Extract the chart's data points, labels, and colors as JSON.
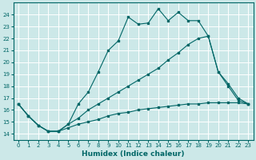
{
  "xlabel": "Humidex (Indice chaleur)",
  "bg_color": "#cce8e8",
  "grid_color": "#ffffff",
  "line_color": "#006666",
  "xlim": [
    -0.5,
    23.5
  ],
  "ylim": [
    13.5,
    25.0
  ],
  "xticks": [
    0,
    1,
    2,
    3,
    4,
    5,
    6,
    7,
    8,
    9,
    10,
    11,
    12,
    13,
    14,
    15,
    16,
    17,
    18,
    19,
    20,
    21,
    22,
    23
  ],
  "yticks": [
    14,
    15,
    16,
    17,
    18,
    19,
    20,
    21,
    22,
    23,
    24
  ],
  "line1_x": [
    0,
    1,
    2,
    3,
    4,
    5,
    6,
    7,
    8,
    9,
    10,
    11,
    12,
    13,
    14,
    15,
    16,
    17,
    18,
    19,
    20,
    21,
    22,
    23
  ],
  "line1_y": [
    16.5,
    15.5,
    14.7,
    14.2,
    14.2,
    14.8,
    16.5,
    17.5,
    19.2,
    21.0,
    21.8,
    23.8,
    23.2,
    23.3,
    24.5,
    23.5,
    24.2,
    23.5,
    23.5,
    22.2,
    19.2,
    18.0,
    16.8,
    16.5
  ],
  "line2_x": [
    0,
    1,
    2,
    3,
    4,
    5,
    6,
    7,
    8,
    9,
    10,
    11,
    12,
    13,
    14,
    15,
    16,
    17,
    18,
    19,
    20,
    21,
    22,
    23
  ],
  "line2_y": [
    16.5,
    15.5,
    14.7,
    14.2,
    14.2,
    14.8,
    15.3,
    16.0,
    16.5,
    17.0,
    17.5,
    18.0,
    18.5,
    19.0,
    19.5,
    20.2,
    20.8,
    21.5,
    22.0,
    22.2,
    19.2,
    18.2,
    17.0,
    16.5
  ],
  "line3_x": [
    0,
    1,
    2,
    3,
    4,
    5,
    6,
    7,
    8,
    9,
    10,
    11,
    12,
    13,
    14,
    15,
    16,
    17,
    18,
    19,
    20,
    21,
    22,
    23
  ],
  "line3_y": [
    16.5,
    15.5,
    14.7,
    14.2,
    14.2,
    14.5,
    14.8,
    15.0,
    15.2,
    15.5,
    15.7,
    15.8,
    16.0,
    16.1,
    16.2,
    16.3,
    16.4,
    16.5,
    16.5,
    16.6,
    16.6,
    16.6,
    16.6,
    16.5
  ]
}
